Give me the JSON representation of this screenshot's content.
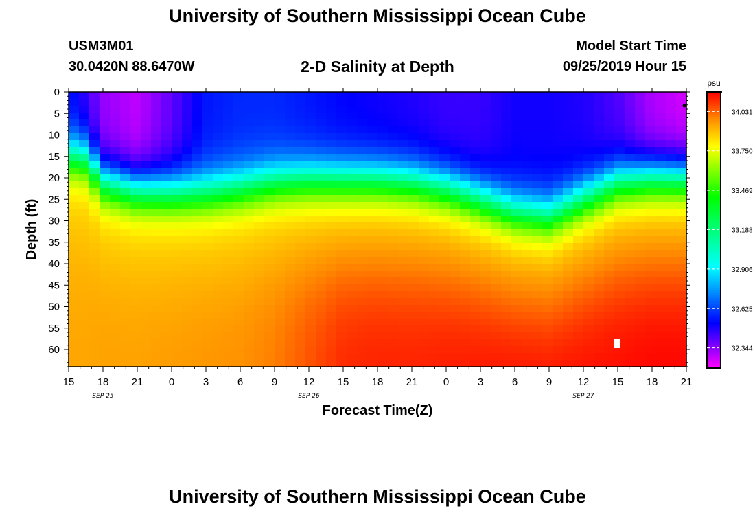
{
  "header": {
    "title": "University of Southern Mississippi Ocean Cube",
    "station_id": "USM3M01",
    "coordinates": "30.0420N 88.6470W",
    "model_start_label": "Model Start Time",
    "model_start_value": "09/25/2019 Hour 15"
  },
  "footer": {
    "title": "University of Southern Mississippi Ocean Cube"
  },
  "chart_data": {
    "type": "heatmap",
    "title": "2-D Salinity at Depth",
    "xlabel": "Forecast Time(Z)",
    "ylabel": "Depth (ft)",
    "x_ticks": [
      "15",
      "18",
      "21",
      "0",
      "3",
      "6",
      "9",
      "12",
      "15",
      "18",
      "21",
      "0",
      "3",
      "6",
      "9",
      "12",
      "15",
      "18",
      "21"
    ],
    "x_range_hours": [
      0,
      54
    ],
    "date_labels": [
      {
        "label": "SEP 25",
        "hour": 3
      },
      {
        "label": "SEP 26",
        "hour": 21
      },
      {
        "label": "SEP 27",
        "hour": 45
      }
    ],
    "y_ticks": [
      0,
      5,
      10,
      15,
      20,
      25,
      30,
      35,
      40,
      45,
      50,
      55,
      60
    ],
    "y_range": [
      0,
      64
    ],
    "colorbar": {
      "unit": "psu",
      "range": [
        32.2,
        34.17
      ],
      "tick_values": [
        32.344,
        32.625,
        32.906,
        33.188,
        33.469,
        33.75,
        34.031
      ],
      "tick_labels": [
        "32.344",
        "32.625",
        "32.906",
        "33.188",
        "33.469",
        "33.750",
        "34.031"
      ]
    },
    "colors": {
      "min": "#ff00ff",
      "low": "#0000ff",
      "mid_low": "#00ffff",
      "mid": "#00ff00",
      "mid_high": "#ffff00",
      "high": "#ff8800",
      "max": "#ff0000"
    },
    "profile_hours": [
      0,
      1.5,
      3,
      6,
      9,
      12,
      15,
      18,
      21,
      24,
      27,
      30,
      33,
      36,
      39,
      42,
      45,
      48,
      51,
      54
    ],
    "interface_depth_ft": [
      15,
      15.5,
      21,
      23,
      23.5,
      23.5,
      22.5,
      21,
      20.5,
      20.5,
      20.5,
      21,
      22.5,
      25,
      28,
      29,
      25,
      21,
      20,
      20
    ],
    "surface_min_psu": [
      32.55,
      32.45,
      32.33,
      32.28,
      32.4,
      32.55,
      32.58,
      32.58,
      32.55,
      32.52,
      32.5,
      32.48,
      32.45,
      32.45,
      32.5,
      32.5,
      32.48,
      32.42,
      32.3,
      32.25
    ],
    "bottom_max_psu": [
      33.93,
      33.93,
      33.94,
      33.94,
      33.95,
      33.96,
      33.97,
      34.0,
      34.06,
      34.12,
      34.13,
      34.13,
      34.14,
      34.15,
      34.16,
      34.16,
      34.16,
      34.16,
      34.17,
      34.17
    ]
  }
}
